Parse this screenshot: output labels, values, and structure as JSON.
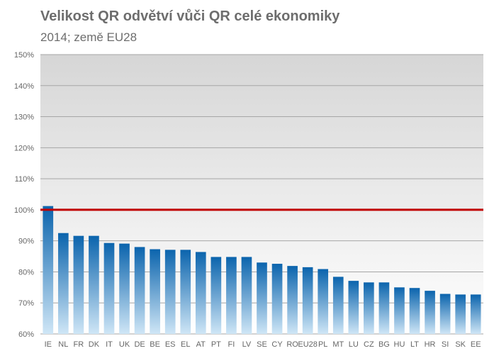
{
  "chart_data": {
    "type": "bar",
    "title": "Velikost QR odvětví vůči QR celé ekonomiky",
    "subtitle": "2014; země EU28",
    "xlabel": "",
    "ylabel": "",
    "ylim": [
      60,
      150
    ],
    "yticks": [
      60,
      70,
      80,
      90,
      100,
      110,
      120,
      130,
      140,
      150
    ],
    "ytick_labels": [
      "60%",
      "70%",
      "80%",
      "90%",
      "100%",
      "110%",
      "120%",
      "130%",
      "140%",
      "150%"
    ],
    "categories": [
      "IE",
      "NL",
      "FR",
      "DK",
      "IT",
      "UK",
      "DE",
      "BE",
      "ES",
      "EL",
      "AT",
      "PT",
      "FI",
      "LV",
      "SE",
      "CY",
      "RO",
      "EU28",
      "PL",
      "MT",
      "LU",
      "CZ",
      "BG",
      "HU",
      "LT",
      "HR",
      "SI",
      "SK",
      "EE"
    ],
    "values": [
      101.2,
      92.5,
      91.6,
      91.6,
      89.3,
      89.1,
      88.0,
      87.3,
      87.1,
      87.1,
      86.4,
      84.8,
      84.8,
      84.8,
      83.0,
      82.6,
      81.9,
      81.5,
      80.9,
      78.4,
      77.1,
      76.6,
      76.6,
      75.0,
      74.8,
      73.9,
      72.9,
      72.7,
      72.7
    ],
    "reference_line": {
      "value": 100,
      "color": "#c00000"
    },
    "grid": true,
    "legend": "none"
  },
  "colors": {
    "bar_top": "#0b64ad",
    "bar_bottom": "#cfe6f6",
    "plot_bg_top": "#d6d6d6",
    "plot_bg_bottom": "#ffffff",
    "gridline": "#a6a6a6"
  }
}
